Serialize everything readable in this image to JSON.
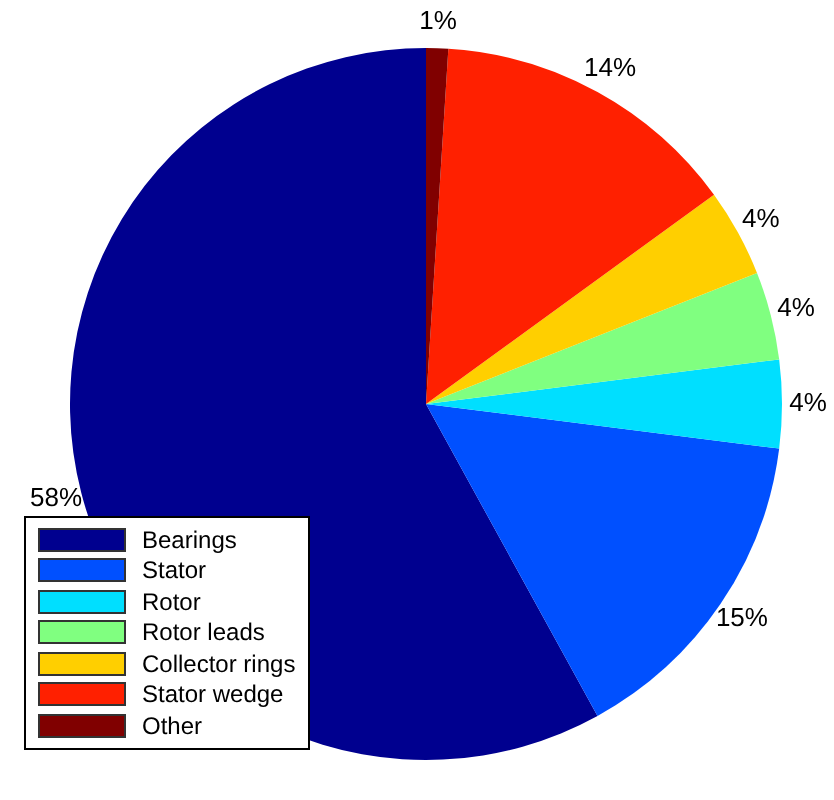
{
  "chart_data": {
    "type": "pie",
    "categories": [
      "Bearings",
      "Stator",
      "Rotor",
      "Rotor leads",
      "Collector rings",
      "Stator wedge",
      "Other"
    ],
    "values": [
      58,
      15,
      4,
      4,
      4,
      14,
      1
    ],
    "colors": [
      "#00008f",
      "#0050ff",
      "#00dfff",
      "#80ff80",
      "#ffcf00",
      "#ff2000",
      "#800000"
    ],
    "value_labels": [
      "58%",
      "15%",
      "4%",
      "4%",
      "4%",
      "14%",
      "1%"
    ],
    "legend": "bottom left"
  }
}
